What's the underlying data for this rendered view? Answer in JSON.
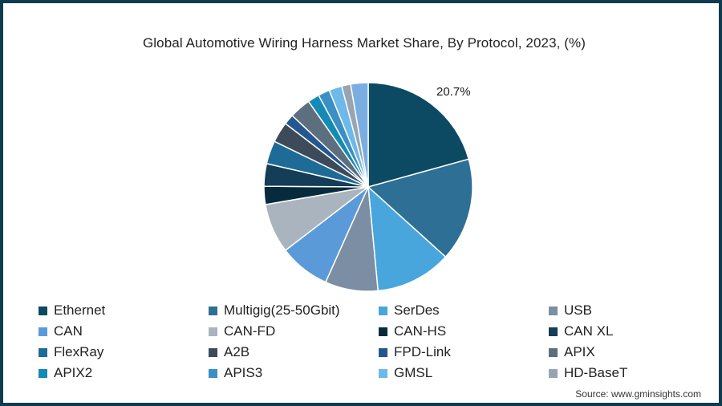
{
  "title": "Global Automotive Wiring Harness Market Share, By Protocol, 2023, (%)",
  "source": "Source: www.gminsights.com",
  "highlight_label": "20.7%",
  "frame_color": "#0d3b4f",
  "chart_data": {
    "type": "pie",
    "title": "Global Automotive Wiring Harness Market Share, By Protocol, 2023, (%)",
    "start_angle": "12 o'clock, clockwise",
    "legend_position": "bottom",
    "annotations": [
      {
        "label": "Ethernet",
        "text": "20.7%"
      }
    ],
    "slices": [
      {
        "label": "Ethernet",
        "value": 20.7,
        "color": "#0c4a63"
      },
      {
        "label": "Multigig(25-50Gbit)",
        "value": 16.0,
        "color": "#2e6f95"
      },
      {
        "label": "SerDes",
        "value": 11.8,
        "color": "#48a6dd"
      },
      {
        "label": "USB",
        "value": 8.2,
        "color": "#7b8ea3"
      },
      {
        "label": "CAN",
        "value": 7.9,
        "color": "#5b9ad9"
      },
      {
        "label": "CAN-FD",
        "value": 7.7,
        "color": "#a9b4be"
      },
      {
        "label": "CAN-HS",
        "value": 2.8,
        "color": "#072b3c"
      },
      {
        "label": "CAN XL",
        "value": 3.5,
        "color": "#143d57"
      },
      {
        "label": "FlexRay",
        "value": 3.6,
        "color": "#1f6b98"
      },
      {
        "label": "A2B",
        "value": 3.2,
        "color": "#3d4a59"
      },
      {
        "label": "FPD-Link",
        "value": 1.6,
        "color": "#24578f"
      },
      {
        "label": "APIX",
        "value": 3.3,
        "color": "#5d6f7f"
      },
      {
        "label": "APIX2",
        "value": 1.8,
        "color": "#138bb5"
      },
      {
        "label": "APIS3",
        "value": 1.8,
        "color": "#3b8fc4"
      },
      {
        "label": "GMSL",
        "value": 2.0,
        "color": "#6db9ea"
      },
      {
        "label": "HD-BaseT",
        "value": 1.4,
        "color": "#98a4b1"
      },
      {
        "label": "",
        "value": 2.7,
        "color": "#7aaee0"
      }
    ]
  },
  "legend": [
    {
      "label": "Ethernet",
      "color": "#0c4a63"
    },
    {
      "label": "Multigig(25-50Gbit)",
      "color": "#2e6f95"
    },
    {
      "label": "SerDes",
      "color": "#48a6dd"
    },
    {
      "label": "USB",
      "color": "#7b8ea3"
    },
    {
      "label": "CAN",
      "color": "#5b9ad9"
    },
    {
      "label": "CAN-FD",
      "color": "#a9b4be"
    },
    {
      "label": "CAN-HS",
      "color": "#072b3c"
    },
    {
      "label": "CAN XL",
      "color": "#143d57"
    },
    {
      "label": "FlexRay",
      "color": "#1f6b98"
    },
    {
      "label": "A2B",
      "color": "#3d4a59"
    },
    {
      "label": "FPD-Link",
      "color": "#24578f"
    },
    {
      "label": "APIX",
      "color": "#5d6f7f"
    },
    {
      "label": "APIX2",
      "color": "#138bb5"
    },
    {
      "label": "APIS3",
      "color": "#3b8fc4"
    },
    {
      "label": "GMSL",
      "color": "#6db9ea"
    },
    {
      "label": "HD-BaseT",
      "color": "#98a4b1"
    }
  ]
}
